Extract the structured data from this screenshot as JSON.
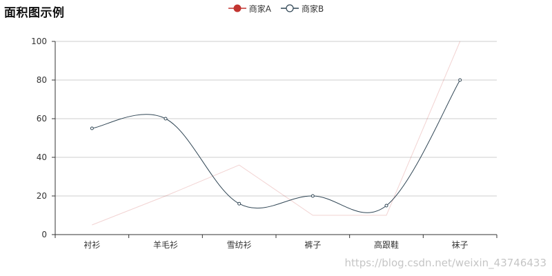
{
  "chart_data": {
    "type": "line",
    "title": "面积图示例",
    "categories": [
      "衬衫",
      "羊毛衫",
      "雪纺衫",
      "裤子",
      "高跟鞋",
      "袜子"
    ],
    "series": [
      {
        "name": "商家A",
        "values": [
          5,
          20,
          36,
          10,
          10,
          100
        ],
        "color": "#c23531",
        "smooth": false
      },
      {
        "name": "商家B",
        "values": [
          55,
          60,
          16,
          20,
          15,
          80
        ],
        "color": "#2f4554",
        "smooth": true
      }
    ],
    "yticks": [
      0,
      20,
      40,
      60,
      80,
      100
    ],
    "ylim": [
      0,
      100
    ],
    "grid": true,
    "legend_position": "top-center"
  },
  "watermark": "https://blog.csdn.net/weixin_43746433"
}
